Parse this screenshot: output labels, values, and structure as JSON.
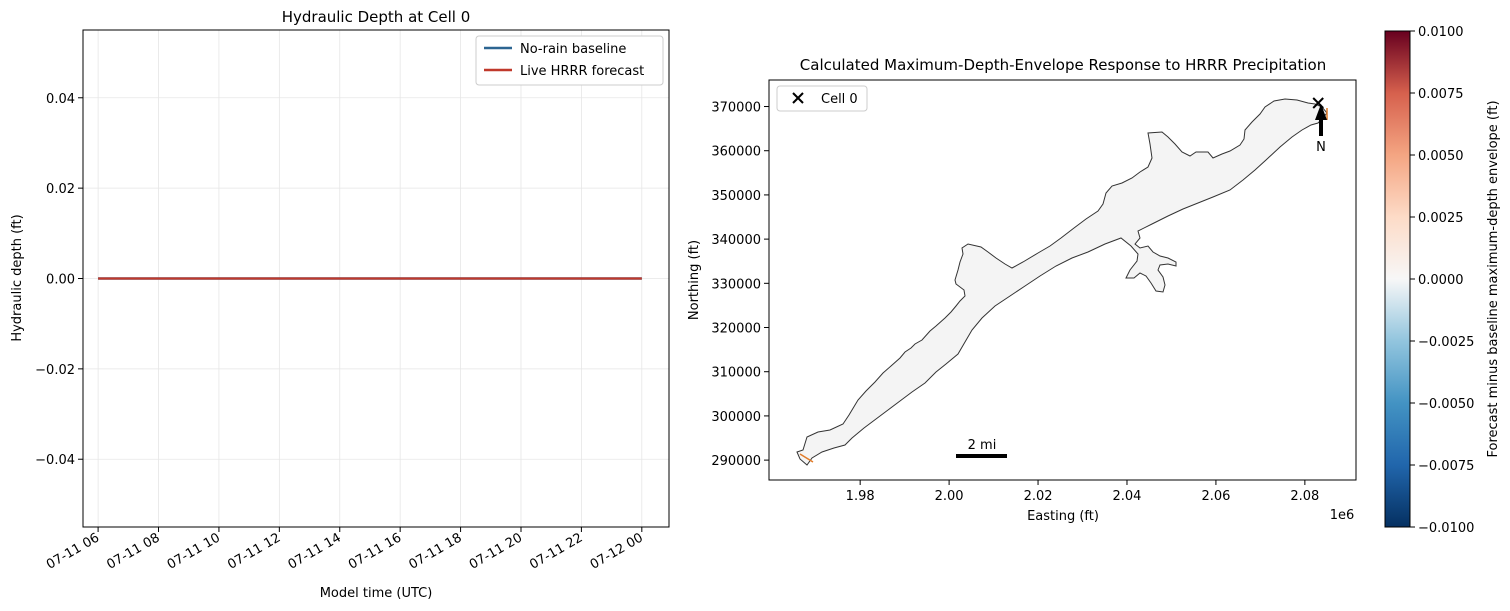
{
  "chart_data": [
    {
      "type": "line",
      "title": "Hydraulic Depth at Cell 0",
      "xlabel": "Model time (UTC)",
      "ylabel": "Hydraulic depth (ft)",
      "x_ticks": [
        "07-11 06",
        "07-11 08",
        "07-11 10",
        "07-11 12",
        "07-11 14",
        "07-11 16",
        "07-11 18",
        "07-11 20",
        "07-11 22",
        "07-12 00"
      ],
      "y_ticks": [
        "0.04",
        "0.02",
        "0.00",
        "−0.02",
        "−0.04"
      ],
      "ylim": [
        -0.055,
        0.055
      ],
      "xlim_hours": [
        5.5,
        24.9
      ],
      "grid": true,
      "legend_position": "top-right",
      "series": [
        {
          "name": "No-rain baseline",
          "color": "#2c6591",
          "x_hours": [
            6,
            24
          ],
          "values": [
            0.0,
            0.0
          ]
        },
        {
          "name": "Live HRRR forecast",
          "color": "#c0392b",
          "x_hours": [
            6,
            24
          ],
          "values": [
            0.0,
            0.0
          ]
        }
      ]
    },
    {
      "type": "map",
      "title": "Calculated Maximum-Depth-Envelope Response to HRRR Precipitation",
      "xlabel": "Easting (ft)",
      "ylabel": "Northing (ft)",
      "x_ticks": [
        "1.98",
        "2.00",
        "2.02",
        "2.04",
        "2.06",
        "2.08"
      ],
      "x_offset_label": "1e6",
      "y_ticks": [
        "370000",
        "360000",
        "350000",
        "340000",
        "330000",
        "320000",
        "310000",
        "300000",
        "290000"
      ],
      "xlim": [
        1959500,
        2091500
      ],
      "ylim": [
        285500,
        376000
      ],
      "legend": [
        {
          "name": "Cell 0",
          "marker": "x",
          "color": "#000000"
        }
      ],
      "legend_position": "top-left",
      "cell_marker": {
        "easting": 2083000,
        "northing": 370800
      },
      "north_arrow_label": "N",
      "scale_bar_label": "2 mi",
      "colorbar": {
        "label": "Forecast minus baseline maximum-depth envelope (ft)",
        "ticks": [
          "0.0100",
          "0.0075",
          "0.0050",
          "0.0025",
          "0.0000",
          "−0.0025",
          "−0.0050",
          "−0.0075",
          "−0.0100"
        ],
        "vmin": -0.01,
        "vmax": 0.01,
        "colormap": "RdBu_r"
      }
    }
  ]
}
